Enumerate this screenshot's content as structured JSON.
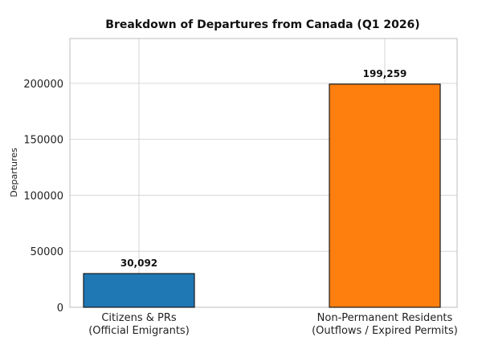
{
  "chart_data": {
    "type": "bar",
    "title": "Breakdown of Departures from Canada (Q1 2026)",
    "xlabel": "",
    "ylabel": "Departures",
    "categories": [
      [
        "Citizens & PRs",
        "(Official Emigrants)"
      ],
      [
        "Non-Permanent Residents",
        "(Outflows / Expired Permits)"
      ]
    ],
    "values": [
      30092,
      199259
    ],
    "value_labels": [
      "30,092",
      "199,259"
    ],
    "colors": [
      "#1f77b4",
      "#ff7f0e"
    ],
    "ylim": [
      0,
      240000
    ],
    "yticks": [
      0,
      50000,
      100000,
      150000,
      200000
    ],
    "ytick_labels": [
      "0",
      "50000",
      "100000",
      "150000",
      "200000"
    ],
    "grid": true,
    "legend": "none"
  }
}
